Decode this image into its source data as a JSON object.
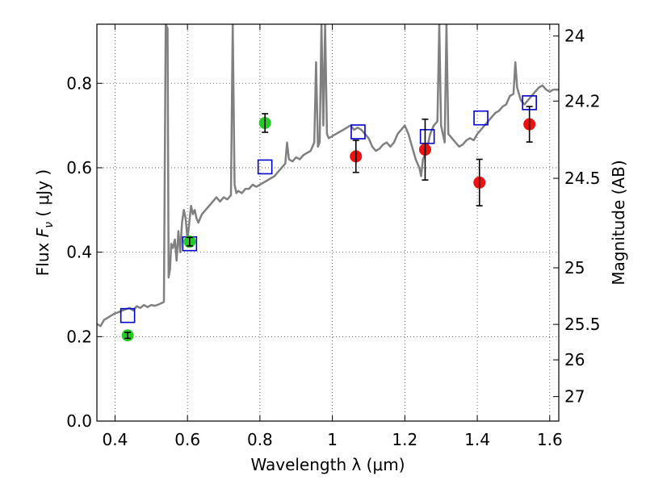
{
  "chart_data": {
    "type": "scatter",
    "xlabel": "Wavelength  λ (μm)",
    "ylabel_prefix": "Flux  ",
    "ylabel_var": "F",
    "ylabel_sub": "ν",
    "ylabel_suffix": "  (  μJy )",
    "y2label": "Magnitude (AB)",
    "xlim": [
      0.35,
      1.625
    ],
    "ylim": [
      0.0,
      0.94
    ],
    "grid": true,
    "x_ticks": [
      0.4,
      0.6,
      0.8,
      1.0,
      1.2,
      1.4,
      1.6
    ],
    "x_tick_labels": [
      "0.4",
      "0.6",
      "0.8",
      "1",
      "1.2",
      "1.4",
      "1.6"
    ],
    "y_ticks": [
      0.0,
      0.2,
      0.4,
      0.6,
      0.8
    ],
    "y_tick_labels": [
      "0.0",
      "0.2",
      "0.4",
      "0.6",
      "0.8"
    ],
    "y2_ticks": [
      {
        "label": "24",
        "flux": 0.912
      },
      {
        "label": "24.2",
        "flux": 0.758
      },
      {
        "label": "24.5",
        "flux": 0.575
      },
      {
        "label": "25",
        "flux": 0.363
      },
      {
        "label": "25.5",
        "flux": 0.229
      },
      {
        "label": "26",
        "flux": 0.145
      },
      {
        "label": "27",
        "flux": 0.058
      }
    ],
    "colors": {
      "spectrum": "#808080",
      "model": "#0000cc",
      "green": "#22cc22",
      "red": "#ee1111",
      "errorbar": "#000000",
      "grid": "#444444"
    },
    "series": [
      {
        "kind": "model_photometry",
        "marker": "open-square",
        "points": [
          {
            "x": 0.435,
            "y": 0.25
          },
          {
            "x": 0.606,
            "y": 0.42
          },
          {
            "x": 0.814,
            "y": 0.602
          },
          {
            "x": 1.071,
            "y": 0.685
          },
          {
            "x": 1.262,
            "y": 0.674
          },
          {
            "x": 1.41,
            "y": 0.718
          },
          {
            "x": 1.544,
            "y": 0.754
          }
        ]
      },
      {
        "kind": "observed_optical",
        "marker": "filled-circle",
        "points": [
          {
            "x": 0.435,
            "y": 0.203,
            "err": 0.007
          },
          {
            "x": 0.606,
            "y": 0.425,
            "err": 0.01
          },
          {
            "x": 0.814,
            "y": 0.706,
            "err": 0.022
          }
        ]
      },
      {
        "kind": "observed_nir",
        "marker": "filled-circle",
        "points": [
          {
            "x": 1.065,
            "y": 0.627,
            "err": 0.038
          },
          {
            "x": 1.256,
            "y": 0.643,
            "err": 0.072
          },
          {
            "x": 1.406,
            "y": 0.565,
            "err": 0.055
          },
          {
            "x": 1.544,
            "y": 0.703,
            "err": 0.042
          }
        ]
      }
    ],
    "spectrum": {
      "kind": "model_spectrum_line",
      "points": [
        [
          0.35,
          0.23
        ],
        [
          0.36,
          0.225
        ],
        [
          0.37,
          0.24
        ],
        [
          0.38,
          0.245
        ],
        [
          0.39,
          0.25
        ],
        [
          0.4,
          0.255
        ],
        [
          0.41,
          0.258
        ],
        [
          0.42,
          0.262
        ],
        [
          0.43,
          0.265
        ],
        [
          0.44,
          0.268
        ],
        [
          0.45,
          0.262
        ],
        [
          0.46,
          0.272
        ],
        [
          0.47,
          0.268
        ],
        [
          0.48,
          0.275
        ],
        [
          0.49,
          0.27
        ],
        [
          0.5,
          0.275
        ],
        [
          0.51,
          0.273
        ],
        [
          0.52,
          0.276
        ],
        [
          0.53,
          0.28
        ],
        [
          0.535,
          0.282
        ],
        [
          0.54,
          0.94
        ],
        [
          0.545,
          0.93
        ],
        [
          0.548,
          0.34
        ],
        [
          0.552,
          0.36
        ],
        [
          0.555,
          0.42
        ],
        [
          0.56,
          0.41
        ],
        [
          0.565,
          0.43
        ],
        [
          0.57,
          0.38
        ],
        [
          0.575,
          0.45
        ],
        [
          0.58,
          0.4
        ],
        [
          0.585,
          0.47
        ],
        [
          0.59,
          0.5
        ],
        [
          0.595,
          0.48
        ],
        [
          0.6,
          0.43
        ],
        [
          0.605,
          0.47
        ],
        [
          0.61,
          0.51
        ],
        [
          0.615,
          0.49
        ],
        [
          0.62,
          0.5
        ],
        [
          0.625,
          0.48
        ],
        [
          0.63,
          0.47
        ],
        [
          0.64,
          0.49
        ],
        [
          0.65,
          0.5
        ],
        [
          0.66,
          0.51
        ],
        [
          0.67,
          0.52
        ],
        [
          0.68,
          0.53
        ],
        [
          0.69,
          0.52
        ],
        [
          0.7,
          0.53
        ],
        [
          0.71,
          0.525
        ],
        [
          0.72,
          0.535
        ],
        [
          0.725,
          0.94
        ],
        [
          0.73,
          0.56
        ],
        [
          0.735,
          0.54
        ],
        [
          0.74,
          0.545
        ],
        [
          0.75,
          0.54
        ],
        [
          0.76,
          0.55
        ],
        [
          0.77,
          0.55
        ],
        [
          0.78,
          0.56
        ],
        [
          0.79,
          0.555
        ],
        [
          0.8,
          0.56
        ],
        [
          0.81,
          0.565
        ],
        [
          0.82,
          0.57
        ],
        [
          0.83,
          0.575
        ],
        [
          0.84,
          0.58
        ],
        [
          0.85,
          0.59
        ],
        [
          0.86,
          0.6
        ],
        [
          0.87,
          0.61
        ],
        [
          0.875,
          0.66
        ],
        [
          0.88,
          0.62
        ],
        [
          0.89,
          0.615
        ],
        [
          0.9,
          0.625
        ],
        [
          0.91,
          0.62
        ],
        [
          0.92,
          0.63
        ],
        [
          0.93,
          0.635
        ],
        [
          0.94,
          0.64
        ],
        [
          0.95,
          0.66
        ],
        [
          0.955,
          0.85
        ],
        [
          0.96,
          0.65
        ],
        [
          0.965,
          0.66
        ],
        [
          0.97,
          0.94
        ],
        [
          0.975,
          0.7
        ],
        [
          0.98,
          0.94
        ],
        [
          0.985,
          0.68
        ],
        [
          0.99,
          0.67
        ],
        [
          1.0,
          0.675
        ],
        [
          1.01,
          0.68
        ],
        [
          1.02,
          0.685
        ],
        [
          1.03,
          0.69
        ],
        [
          1.04,
          0.695
        ],
        [
          1.05,
          0.7
        ],
        [
          1.06,
          0.69
        ],
        [
          1.07,
          0.695
        ],
        [
          1.08,
          0.69
        ],
        [
          1.09,
          0.68
        ],
        [
          1.1,
          0.67
        ],
        [
          1.11,
          0.65
        ],
        [
          1.12,
          0.64
        ],
        [
          1.13,
          0.645
        ],
        [
          1.14,
          0.655
        ],
        [
          1.15,
          0.66
        ],
        [
          1.16,
          0.65
        ],
        [
          1.17,
          0.66
        ],
        [
          1.18,
          0.68
        ],
        [
          1.19,
          0.69
        ],
        [
          1.2,
          0.7
        ],
        [
          1.21,
          0.68
        ],
        [
          1.22,
          0.65
        ],
        [
          1.23,
          0.62
        ],
        [
          1.24,
          0.6
        ],
        [
          1.245,
          0.58
        ],
        [
          1.25,
          0.62
        ],
        [
          1.26,
          0.64
        ],
        [
          1.27,
          0.68
        ],
        [
          1.28,
          0.7
        ],
        [
          1.29,
          0.71
        ],
        [
          1.295,
          0.94
        ],
        [
          1.3,
          0.7
        ],
        [
          1.31,
          0.66
        ],
        [
          1.315,
          0.94
        ],
        [
          1.32,
          0.68
        ],
        [
          1.33,
          0.67
        ],
        [
          1.34,
          0.66
        ],
        [
          1.35,
          0.65
        ],
        [
          1.36,
          0.655
        ],
        [
          1.37,
          0.665
        ],
        [
          1.38,
          0.67
        ],
        [
          1.39,
          0.665
        ],
        [
          1.4,
          0.68
        ],
        [
          1.41,
          0.69
        ],
        [
          1.42,
          0.7
        ],
        [
          1.43,
          0.71
        ],
        [
          1.44,
          0.72
        ],
        [
          1.45,
          0.73
        ],
        [
          1.46,
          0.735
        ],
        [
          1.47,
          0.745
        ],
        [
          1.48,
          0.75
        ],
        [
          1.49,
          0.77
        ],
        [
          1.5,
          0.775
        ],
        [
          1.505,
          0.85
        ],
        [
          1.51,
          0.79
        ],
        [
          1.52,
          0.76
        ],
        [
          1.53,
          0.75
        ],
        [
          1.54,
          0.76
        ],
        [
          1.55,
          0.77
        ],
        [
          1.56,
          0.78
        ],
        [
          1.57,
          0.79
        ],
        [
          1.58,
          0.795
        ],
        [
          1.59,
          0.785
        ],
        [
          1.6,
          0.78
        ],
        [
          1.61,
          0.785
        ],
        [
          1.625,
          0.785
        ]
      ]
    }
  }
}
